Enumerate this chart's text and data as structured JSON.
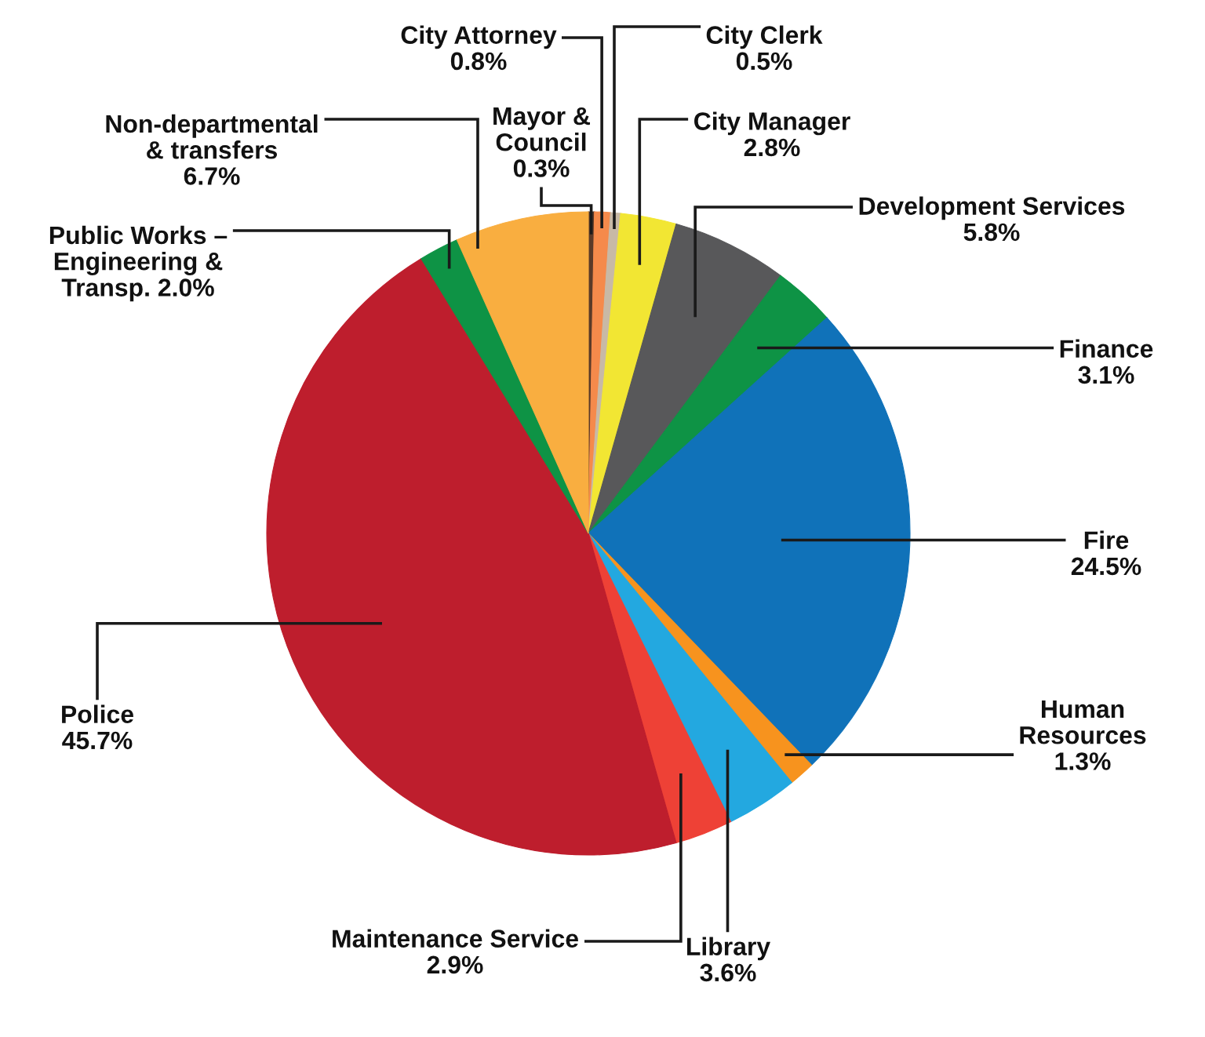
{
  "chart_data": {
    "type": "pie",
    "categories": [
      "Mayor &\nCouncil",
      "City Attorney",
      "City Clerk",
      "City Manager",
      "Development Services",
      "Finance",
      "Fire",
      "Human\nResources",
      "Library",
      "Maintenance Service",
      "Police",
      "Public Works –\nEngineering &\nTransp.",
      "Non-departmental\n& transfers"
    ],
    "values": [
      0.3,
      0.8,
      0.5,
      2.8,
      5.8,
      3.1,
      24.5,
      1.3,
      3.6,
      2.9,
      45.7,
      2.0,
      6.7
    ],
    "colors": [
      "#5a3a28",
      "#f58a4b",
      "#c8b9a6",
      "#f2e633",
      "#58585a",
      "#0e9345",
      "#1072b9",
      "#f7931e",
      "#23a8e0",
      "#ee4136",
      "#be1e2d",
      "#0e9345",
      "#f9ae40"
    ],
    "value_labels": [
      "0.3%",
      "0.8%",
      "0.5%",
      "2.8%",
      "5.8%",
      "3.1%",
      "24.5%",
      "1.3%",
      "3.6%",
      "2.9%",
      "45.7%",
      "2.0%",
      "6.7%"
    ]
  }
}
